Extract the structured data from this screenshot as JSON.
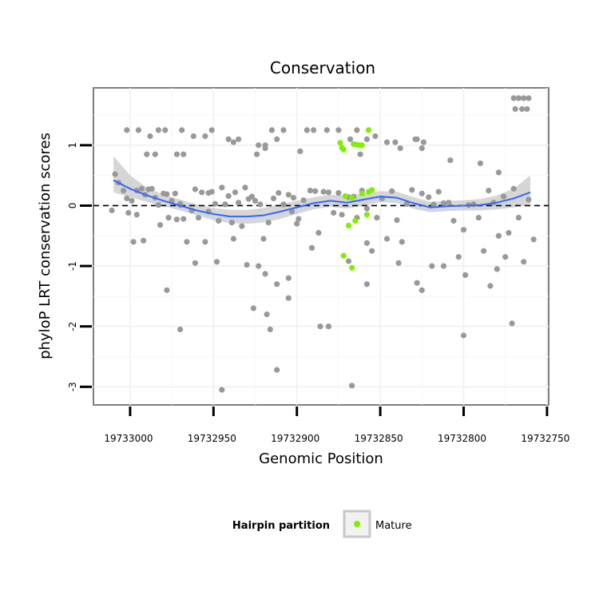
{
  "chart_data": {
    "type": "scatter",
    "title": "Conservation",
    "xlabel": "Genomic Position",
    "ylabel": "phyloP LRT conservation scores",
    "x_reversed": true,
    "xlim": [
      19733022,
      19732749
    ],
    "ylim": [
      -3.3,
      1.95
    ],
    "x_ticks": [
      19733000,
      19732950,
      19732900,
      19732850,
      19732800,
      19732750
    ],
    "x_tick_labels": [
      "19733000",
      "19732950",
      "19732900",
      "19732850",
      "19732800",
      "19732750"
    ],
    "y_ticks": [
      -3,
      -2,
      -1,
      0,
      1
    ],
    "y_tick_labels": [
      "-3",
      "-2",
      "-1",
      "0",
      "1"
    ],
    "grid": true,
    "reference_line": {
      "y": 0,
      "style": "dashed",
      "color": "#000000"
    },
    "legend": {
      "position": "bottom",
      "title": "Hairpin partition",
      "entries": [
        {
          "label": "Mature",
          "color": "#7ff000"
        }
      ]
    },
    "colors": {
      "other": "#999999",
      "mature": "#7ff000",
      "smooth": "#3366ff",
      "band": "#c8c8c8"
    },
    "series": [
      {
        "name": "",
        "color": "#999999",
        "points": [
          [
            19733009,
            0.52
          ],
          [
            19733007,
            0.38
          ],
          [
            19733011,
            -0.08
          ],
          [
            19733004,
            0.25
          ],
          [
            19733002,
            0.12
          ],
          [
            19732999,
            0.08
          ],
          [
            19733001,
            -0.12
          ],
          [
            19732996,
            -0.15
          ],
          [
            19732998,
            -0.6
          ],
          [
            19732992,
            -0.58
          ],
          [
            19732993,
            0.28
          ],
          [
            19732991,
            0.18
          ],
          [
            19732989,
            0.27
          ],
          [
            19732987,
            0.28
          ],
          [
            19732985,
            0.13
          ],
          [
            19732983,
            0.01
          ],
          [
            19732982,
            -0.32
          ],
          [
            19732980,
            0.2
          ],
          [
            19732978,
            0.19
          ],
          [
            19732977,
            -0.2
          ],
          [
            19732975,
            0.08
          ],
          [
            19732973,
            0.2
          ],
          [
            19732972,
            -0.23
          ],
          [
            19732970,
            0.03
          ],
          [
            19732968,
            -0.22
          ],
          [
            19732966,
            -0.6
          ],
          [
            19732963,
            -0.08
          ],
          [
            19732961,
            0.27
          ],
          [
            19732959,
            -0.2
          ],
          [
            19732957,
            0.22
          ],
          [
            19732955,
            -0.6
          ],
          [
            19732953,
            0.21
          ],
          [
            19732951,
            0.23
          ],
          [
            19732949,
            0.03
          ],
          [
            19732947,
            -0.25
          ],
          [
            19732945,
            0.3
          ],
          [
            19732943,
            0.02
          ],
          [
            19732941,
            0.16
          ],
          [
            19732939,
            -0.28
          ],
          [
            19732937,
            0.22
          ],
          [
            19732935,
            0.05
          ],
          [
            19732933,
            -0.34
          ],
          [
            19732931,
            0.3
          ],
          [
            19732929,
            0.11
          ],
          [
            19732927,
            0.15
          ],
          [
            19732925,
            0.08
          ],
          [
            19732922,
            0.02
          ],
          [
            19732920,
            -0.55
          ],
          [
            19732917,
            -0.28
          ],
          [
            19732914,
            0.12
          ],
          [
            19732911,
            0.21
          ],
          [
            19732908,
            0.02
          ],
          [
            19732905,
            0.18
          ],
          [
            19732902,
            0.13
          ],
          [
            19732899,
            -0.22
          ],
          [
            19732896,
            0.09
          ],
          [
            19732892,
            0.25
          ],
          [
            19732889,
            0.24
          ],
          [
            19732887,
            -0.45
          ],
          [
            19732884,
            0.23
          ],
          [
            19732881,
            0.22
          ],
          [
            19732878,
            -0.12
          ],
          [
            19732875,
            0.21
          ],
          [
            19732873,
            -0.15
          ],
          [
            19732869,
            0.14
          ],
          [
            19732866,
            0.15
          ],
          [
            19732864,
            -0.2
          ],
          [
            19732861,
            0.25
          ],
          [
            19732858,
            -0.05
          ],
          [
            19732855,
            -0.75
          ],
          [
            19732852,
            -0.2
          ],
          [
            19732849,
            0.12
          ],
          [
            19732846,
            -0.55
          ],
          [
            19732843,
            0.24
          ],
          [
            19732840,
            -0.24
          ],
          [
            19732837,
            -0.6
          ],
          [
            19732834,
            0.03
          ],
          [
            19732831,
            0.26
          ],
          [
            19732828,
            -1.28
          ],
          [
            19732825,
            0.2
          ],
          [
            19732821,
            0.14
          ],
          [
            19732818,
            0.02
          ],
          [
            19732815,
            0.23
          ],
          [
            19732812,
            0.04
          ],
          [
            19732809,
            0.05
          ],
          [
            19732806,
            -0.25
          ],
          [
            19732803,
            -0.85
          ],
          [
            19732800,
            -0.4
          ],
          [
            19732797,
            0.01
          ],
          [
            19732794,
            0.02
          ],
          [
            19732791,
            -0.2
          ],
          [
            19732788,
            -0.75
          ],
          [
            19732785,
            0.25
          ],
          [
            19732782,
            0.05
          ],
          [
            19732779,
            -0.5
          ],
          [
            19732776,
            0.15
          ],
          [
            19732773,
            -0.45
          ],
          [
            19732770,
            0.28
          ],
          [
            19732767,
            -0.2
          ],
          [
            19732764,
            -0.93
          ],
          [
            19732761,
            0.1
          ],
          [
            19732758,
            -0.56
          ],
          [
            19733002,
            1.25
          ],
          [
            19732995,
            1.25
          ],
          [
            19732988,
            1.15
          ],
          [
            19732983,
            1.25
          ],
          [
            19732979,
            1.25
          ],
          [
            19732969,
            1.25
          ],
          [
            19732962,
            1.15
          ],
          [
            19732955,
            1.15
          ],
          [
            19732951,
            1.25
          ],
          [
            19732941,
            1.1
          ],
          [
            19732938,
            1.05
          ],
          [
            19732935,
            1.1
          ],
          [
            19732923,
            1.0
          ],
          [
            19732919,
            1.0
          ],
          [
            19732915,
            1.25
          ],
          [
            19732912,
            1.1
          ],
          [
            19732908,
            1.25
          ],
          [
            19732894,
            1.25
          ],
          [
            19732890,
            1.25
          ],
          [
            19732882,
            1.25
          ],
          [
            19732875,
            1.25
          ],
          [
            19732868,
            1.1
          ],
          [
            19732864,
            1.25
          ],
          [
            19732858,
            1.1
          ],
          [
            19732853,
            1.15
          ],
          [
            19732846,
            1.05
          ],
          [
            19732841,
            1.05
          ],
          [
            19732838,
            0.95
          ],
          [
            19732829,
            1.1
          ],
          [
            19732825,
            0.95
          ],
          [
            19732808,
            0.75
          ],
          [
            19732790,
            0.7
          ],
          [
            19732779,
            0.55
          ],
          [
            19732990,
            0.85
          ],
          [
            19732985,
            0.85
          ],
          [
            19732972,
            0.85
          ],
          [
            19732968,
            0.85
          ],
          [
            19732924,
            0.85
          ],
          [
            19732919,
            0.95
          ],
          [
            19732898,
            0.9
          ],
          [
            19732862,
            0.85
          ],
          [
            19732828,
            1.1
          ],
          [
            19732824,
            1.05
          ],
          [
            19732996,
            0.25
          ],
          [
            19732970,
            0.01
          ],
          [
            19732953,
            -0.1
          ],
          [
            19732938,
            -0.55
          ],
          [
            19732903,
            -0.1
          ],
          [
            19732900,
            -0.3
          ],
          [
            19732891,
            -0.7
          ],
          [
            19732858,
            -0.62
          ],
          [
            19732839,
            -0.95
          ],
          [
            19732819,
            -1.0
          ],
          [
            19732799,
            -1.15
          ],
          [
            19732780,
            -1.05
          ],
          [
            19732978,
            -1.4
          ],
          [
            19732961,
            -0.95
          ],
          [
            19732948,
            -0.93
          ],
          [
            19732930,
            -0.98
          ],
          [
            19732923,
            -1.0
          ],
          [
            19732919,
            -1.13
          ],
          [
            19732912,
            -1.3
          ],
          [
            19732905,
            -1.2
          ],
          [
            19732869,
            -0.92
          ],
          [
            19732858,
            -1.3
          ],
          [
            19732825,
            -1.4
          ],
          [
            19732812,
            -1.0
          ],
          [
            19732784,
            -1.33
          ],
          [
            19732775,
            -0.85
          ],
          [
            19732926,
            -1.7
          ],
          [
            19732918,
            -1.8
          ],
          [
            19732905,
            -1.53
          ],
          [
            19732886,
            -2.0
          ],
          [
            19732881,
            -2.0
          ],
          [
            19732916,
            -2.05
          ],
          [
            19732970,
            -2.05
          ],
          [
            19732800,
            -2.15
          ],
          [
            19732771,
            -1.95
          ],
          [
            19732912,
            -2.72
          ],
          [
            19732945,
            -3.05
          ],
          [
            19732867,
            -2.98
          ],
          [
            19732770,
            1.78
          ],
          [
            19732767,
            1.78
          ],
          [
            19732764,
            1.78
          ],
          [
            19732761,
            1.78
          ],
          [
            19732769,
            1.6
          ],
          [
            19732765,
            1.6
          ],
          [
            19732762,
            1.6
          ]
        ]
      },
      {
        "name": "Mature",
        "color": "#7ff000",
        "points": [
          [
            19732857,
            1.25
          ],
          [
            19732861,
            1.0
          ],
          [
            19732862,
            1.0
          ],
          [
            19732864,
            1.01
          ],
          [
            19732874,
            1.04
          ],
          [
            19732873,
            0.96
          ],
          [
            19732872,
            0.93
          ],
          [
            19732866,
            1.02
          ],
          [
            19732871,
            0.16
          ],
          [
            19732867,
            0.13
          ],
          [
            19732861,
            0.2
          ],
          [
            19732857,
            0.23
          ],
          [
            19732855,
            0.26
          ],
          [
            19732865,
            -0.25
          ],
          [
            19732869,
            -0.33
          ],
          [
            19732858,
            -0.15
          ],
          [
            19732872,
            -0.83
          ],
          [
            19732867,
            -1.03
          ]
        ]
      }
    ],
    "smooth": {
      "x": [
        19733010,
        19733000,
        19732990,
        19732980,
        19732970,
        19732960,
        19732950,
        19732940,
        19732930,
        19732920,
        19732910,
        19732900,
        19732890,
        19732880,
        19732870,
        19732860,
        19732850,
        19732840,
        19732830,
        19732820,
        19732810,
        19732800,
        19732790,
        19732780,
        19732770,
        19732760
      ],
      "y": [
        0.42,
        0.28,
        0.17,
        0.08,
        0.0,
        -0.08,
        -0.14,
        -0.18,
        -0.18,
        -0.16,
        -0.1,
        -0.03,
        0.04,
        0.08,
        0.05,
        0.1,
        0.15,
        0.13,
        0.04,
        -0.03,
        -0.01,
        0.0,
        0.01,
        0.05,
        0.12,
        0.22
      ],
      "lower": [
        0.22,
        0.14,
        0.06,
        -0.01,
        -0.08,
        -0.16,
        -0.24,
        -0.29,
        -0.3,
        -0.28,
        -0.22,
        -0.14,
        -0.06,
        -0.02,
        -0.05,
        0.0,
        0.06,
        0.04,
        -0.05,
        -0.11,
        -0.09,
        -0.08,
        -0.08,
        -0.06,
        -0.03,
        0.02
      ],
      "upper": [
        0.82,
        0.5,
        0.3,
        0.18,
        0.1,
        0.02,
        -0.04,
        -0.07,
        -0.07,
        -0.04,
        0.02,
        0.08,
        0.14,
        0.18,
        0.16,
        0.2,
        0.24,
        0.23,
        0.14,
        0.06,
        0.08,
        0.09,
        0.11,
        0.17,
        0.28,
        0.5
      ]
    }
  }
}
